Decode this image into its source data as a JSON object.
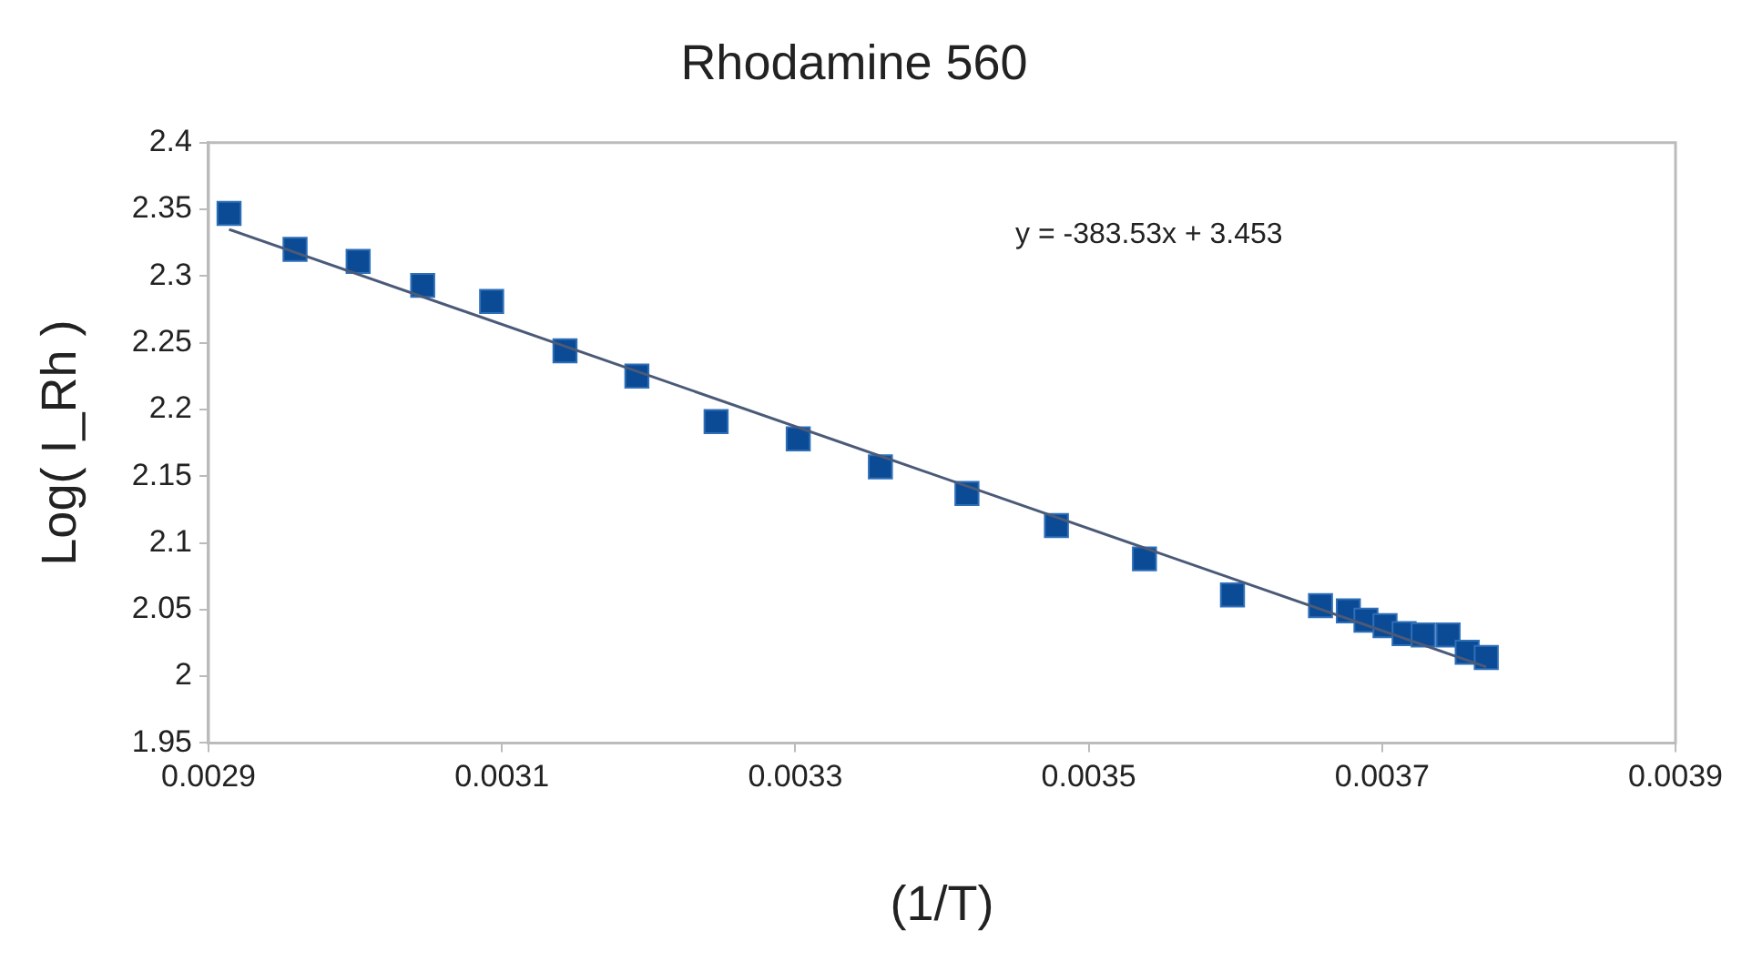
{
  "chart_data": {
    "type": "scatter",
    "title": "Rhodamine 560",
    "xlabel": "(1/T)",
    "ylabel": "Log( I_Rh )",
    "xlim": [
      0.0029,
      0.0039
    ],
    "xticks": [
      0.0029,
      0.0031,
      0.0033,
      0.0035,
      0.0037,
      0.0039
    ],
    "ylim": [
      1.95,
      2.4
    ],
    "yticks": [
      1.95,
      2,
      2.05,
      2.1,
      2.15,
      2.2,
      2.25,
      2.3,
      2.35,
      2.4
    ],
    "grid": false,
    "legend": false,
    "annotations": [
      "y = -383.53x + 3.453"
    ],
    "series": [
      {
        "marker": "square",
        "color": "#0b4a94",
        "x": [
          0.002914,
          0.002959,
          0.003002,
          0.003046,
          0.003093,
          0.003143,
          0.003192,
          0.003246,
          0.003302,
          0.003358,
          0.003417,
          0.003478,
          0.003538,
          0.003598,
          0.003658,
          0.003677,
          0.003689,
          0.003702,
          0.003715,
          0.003728,
          0.003745,
          0.003758,
          0.003771
        ],
        "values": [
          2.347,
          2.32,
          2.311,
          2.293,
          2.281,
          2.244,
          2.225,
          2.191,
          2.178,
          2.157,
          2.137,
          2.113,
          2.088,
          2.061,
          2.053,
          2.049,
          2.042,
          2.038,
          2.032,
          2.031,
          2.031,
          2.018,
          2.014
        ]
      },
      {
        "type": "line",
        "marker": "none",
        "color": "#4a5a78",
        "x": [
          0.002914,
          0.003771
        ],
        "values": [
          2.335,
          2.007
        ]
      }
    ]
  }
}
